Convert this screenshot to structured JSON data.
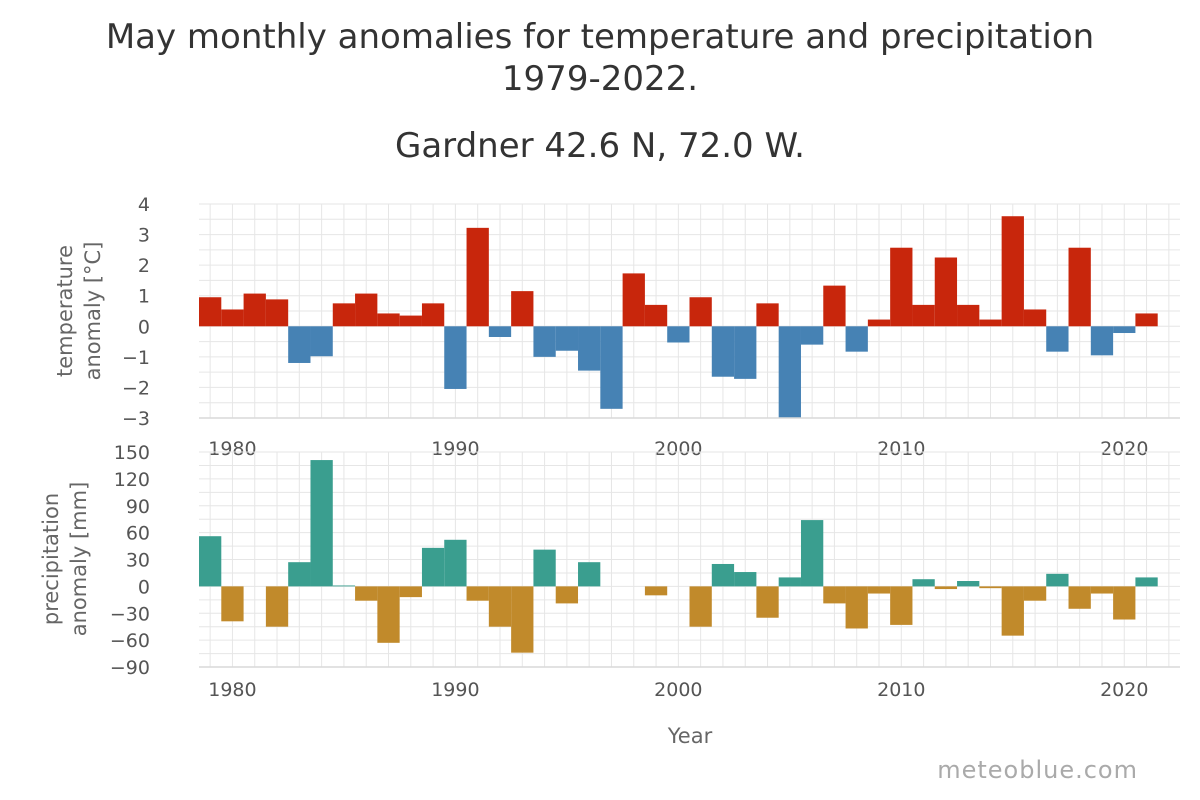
{
  "title_line1": "May monthly anomalies for temperature and precipitation",
  "title_line2": "1979-2022.",
  "subtitle": "Gardner 42.6 N, 72.0 W.",
  "watermark": "meteoblue.com",
  "colors": {
    "temp_pos": "#c8260c",
    "temp_neg": "#4682b4",
    "prec_pos": "#3a9e8f",
    "prec_neg": "#c18a2b"
  },
  "chart_data": [
    {
      "type": "bar",
      "ylabel": "temperature anomaly [°C]",
      "xlabel": "",
      "ylim": [
        -3,
        4
      ],
      "yticks": [
        4,
        3,
        2,
        1,
        0,
        -1,
        -2,
        -3
      ],
      "xlim": [
        1978.5,
        2022.5
      ],
      "xticks": [
        1980,
        1990,
        2000,
        2010,
        2020
      ],
      "grid": true,
      "x": [
        1979,
        1980,
        1981,
        1982,
        1983,
        1984,
        1985,
        1986,
        1987,
        1988,
        1989,
        1990,
        1991,
        1992,
        1993,
        1994,
        1995,
        1996,
        1997,
        1998,
        1999,
        2000,
        2001,
        2002,
        2003,
        2004,
        2005,
        2006,
        2007,
        2008,
        2009,
        2010,
        2011,
        2012,
        2013,
        2014,
        2015,
        2016,
        2017,
        2018,
        2019,
        2020,
        2021
      ],
      "values": [
        0.95,
        0.55,
        1.07,
        0.88,
        -1.2,
        -0.98,
        0.75,
        1.07,
        0.42,
        0.35,
        0.75,
        -2.05,
        3.22,
        -0.35,
        1.15,
        -1.0,
        -0.8,
        -1.45,
        -2.7,
        1.73,
        0.7,
        -0.53,
        0.95,
        -1.65,
        -1.72,
        0.75,
        -3.0,
        -0.6,
        1.33,
        -0.83,
        0.22,
        2.57,
        0.7,
        2.25,
        0.7,
        0.22,
        3.6,
        0.55,
        -0.83,
        2.57,
        -0.95,
        -0.22,
        0.42
      ]
    },
    {
      "type": "bar",
      "ylabel": "precipitation anomaly [mm]",
      "xlabel": "Year",
      "ylim": [
        -90,
        150
      ],
      "yticks": [
        150,
        120,
        90,
        60,
        30,
        0,
        -30,
        -60,
        -90
      ],
      "xlim": [
        1978.5,
        2022.5
      ],
      "xticks": [
        1980,
        1990,
        2000,
        2010,
        2020
      ],
      "grid": true,
      "x": [
        1979,
        1980,
        1981,
        1982,
        1983,
        1984,
        1985,
        1986,
        1987,
        1988,
        1989,
        1990,
        1991,
        1992,
        1993,
        1994,
        1995,
        1996,
        1997,
        1998,
        1999,
        2000,
        2001,
        2002,
        2003,
        2004,
        2005,
        2006,
        2007,
        2008,
        2009,
        2010,
        2011,
        2012,
        2013,
        2014,
        2015,
        2016,
        2017,
        2018,
        2019,
        2020,
        2021
      ],
      "values": [
        56,
        -39,
        0,
        -45,
        27,
        141,
        1,
        -16,
        -63,
        -12,
        43,
        52,
        -16,
        -45,
        -74,
        41,
        -19,
        27,
        0,
        0,
        -10,
        0,
        -45,
        25,
        16,
        -35,
        10,
        74,
        -19,
        -47,
        -8,
        -43,
        8,
        -3,
        6,
        -2,
        -55,
        -16,
        14,
        -25,
        -8,
        -37,
        10
      ]
    }
  ]
}
